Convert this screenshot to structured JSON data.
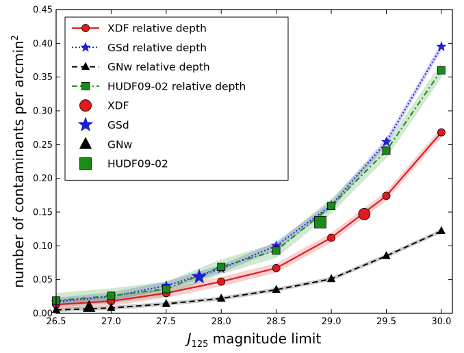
{
  "chart_data": {
    "type": "line",
    "title": "",
    "xlabel_italic": "J",
    "xlabel_sub": "125",
    "xlabel_rest": " magnitude limit",
    "ylabel": "number of contaminants per arcmin",
    "ylabel_sup": "2",
    "xlim": [
      26.5,
      30.1
    ],
    "ylim": [
      0.0,
      0.45
    ],
    "x_ticks": [
      "26.5",
      "27.0",
      "27.5",
      "28.0",
      "28.5",
      "29.0",
      "29.5",
      "30.0"
    ],
    "y_ticks": [
      "0.00",
      "0.05",
      "0.10",
      "0.15",
      "0.20",
      "0.25",
      "0.30",
      "0.35",
      "0.40",
      "0.45"
    ],
    "x": [
      26.5,
      27.0,
      27.5,
      28.0,
      28.5,
      29.0,
      29.5,
      30.0
    ],
    "grid": false,
    "legend_placement": "top-left",
    "series": [
      {
        "name": "XDF relative depth",
        "color": "#e31a1c",
        "marker": "circle",
        "linestyle": "solid",
        "values": [
          0.013,
          0.018,
          0.03,
          0.047,
          0.067,
          0.112,
          0.174,
          0.268
        ],
        "band": 0.007
      },
      {
        "name": "GSd relative depth",
        "color": "#1f1fd0",
        "marker": "star",
        "linestyle": "dotted",
        "values": [
          0.017,
          0.025,
          0.041,
          0.066,
          0.1,
          0.16,
          0.254,
          0.395
        ],
        "band": 0.006
      },
      {
        "name": "GNw relative depth",
        "color": "#000000",
        "marker": "triangle",
        "linestyle": "dashed",
        "values": [
          0.005,
          0.008,
          0.014,
          0.022,
          0.035,
          0.051,
          0.085,
          0.122
        ],
        "band": 0.003
      },
      {
        "name": "HUDF09-02 relative depth",
        "color": "#1a8a1a",
        "marker": "square",
        "linestyle": "dashdot",
        "values": [
          0.019,
          0.026,
          0.036,
          0.069,
          0.093,
          0.159,
          0.241,
          0.36
        ],
        "band": 0.011
      }
    ],
    "points": [
      {
        "name": "XDF",
        "color": "#e31a1c",
        "marker": "circle",
        "x": 29.3,
        "y": 0.147
      },
      {
        "name": "GSd",
        "color": "#1f1fd0",
        "marker": "star",
        "x": 27.8,
        "y": 0.054
      },
      {
        "name": "GNw",
        "color": "#000000",
        "marker": "triangle",
        "x": 26.8,
        "y": 0.009
      },
      {
        "name": "HUDF09-02",
        "color": "#1a8a1a",
        "marker": "square",
        "x": 28.9,
        "y": 0.135
      }
    ]
  }
}
